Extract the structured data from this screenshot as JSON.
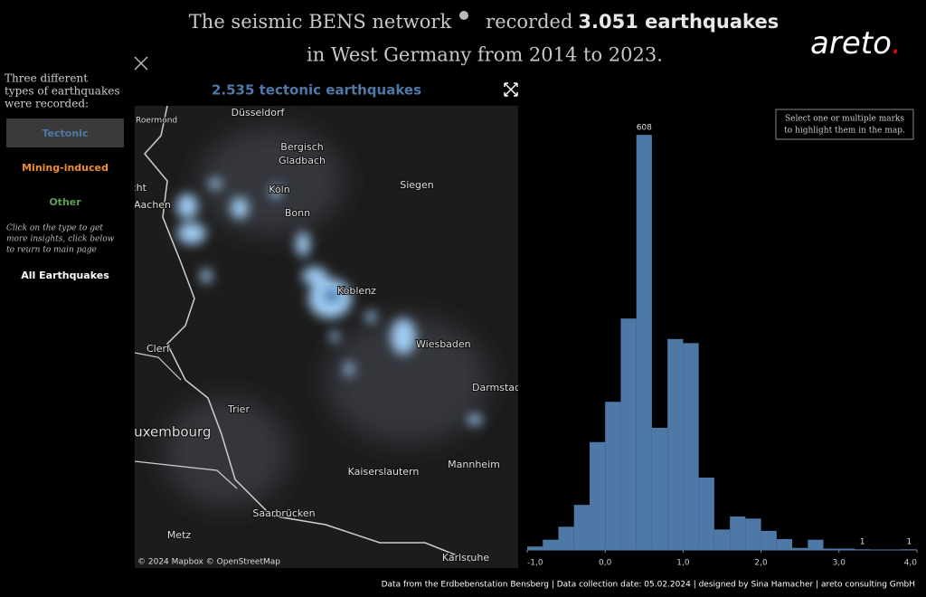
{
  "header": {
    "title_a": "The seismic BENS network",
    "title_b": "recorded",
    "title_c": "3.051 earthquakes",
    "title_line2": "in West Germany from 2014 to 2023.",
    "logo": "areto",
    "logo_dot": "."
  },
  "sidebar": {
    "intro": [
      "Three different",
      "types of earthquakes",
      "were recorded:"
    ],
    "buttons": [
      "Tectonic",
      "Mining-induced",
      "Other"
    ],
    "note": [
      "Click on the type to get",
      "more insights, click below",
      "to reurn to main page"
    ],
    "all": "All Earthquakes"
  },
  "map": {
    "title": "2.535 tectonic earthquakes",
    "cities": [
      "Roermond",
      "Düsseldorf",
      "Bergisch",
      "Gladbach",
      "Köln",
      "Bonn",
      "Siegen",
      "Aachen",
      "Maastricht",
      "Koblenz",
      "Wiesbaden",
      "Darmstadt",
      "Clerf",
      "Trier",
      "Luxembourg",
      "Kaiserslautern",
      "Mannheim",
      "Saarbrücken",
      "Metz",
      "Karlsruhe"
    ],
    "attribution": "© 2024 Mapbox © OpenStreetMap"
  },
  "tooltip": [
    "Select one or multiple marks",
    "to highlight them in the map."
  ],
  "footer": "Data from the Erdbebenstation Bensberg | Data collection date: 05.02.2024 | designed by Sina Hamacher | areto consulting GmbH",
  "chart_data": {
    "type": "histogram",
    "bins": [
      -1.0,
      -0.8,
      -0.6,
      -0.4,
      -0.2,
      0.0,
      0.2,
      0.4,
      0.6,
      0.8,
      1.0,
      1.2,
      1.4,
      1.6,
      1.8,
      2.0,
      2.2,
      2.4,
      2.6,
      2.8,
      3.0,
      3.2,
      3.4,
      3.6,
      3.8,
      4.0
    ],
    "values": [
      5,
      15,
      34,
      66,
      158,
      217,
      339,
      608,
      179,
      309,
      303,
      106,
      30,
      49,
      46,
      28,
      16,
      3,
      15,
      2,
      2,
      1,
      0,
      0,
      1
    ],
    "value_labels": [
      null,
      null,
      null,
      null,
      null,
      null,
      null,
      "608",
      null,
      null,
      null,
      null,
      null,
      null,
      null,
      null,
      null,
      null,
      null,
      null,
      null,
      "1",
      null,
      null,
      "1"
    ],
    "color": "#4e79a7",
    "xlim": [
      -1.0,
      4.0
    ],
    "xticks": [
      {
        "value": -1.0,
        "label": "-1,0"
      },
      {
        "value": 0.0,
        "label": "0,0"
      },
      {
        "value": 1.0,
        "label": "1,0"
      },
      {
        "value": 2.0,
        "label": "2,0"
      },
      {
        "value": 3.0,
        "label": "3,0"
      },
      {
        "value": 4.0,
        "label": "4,0"
      }
    ],
    "ylim": [
      0,
      640
    ]
  }
}
